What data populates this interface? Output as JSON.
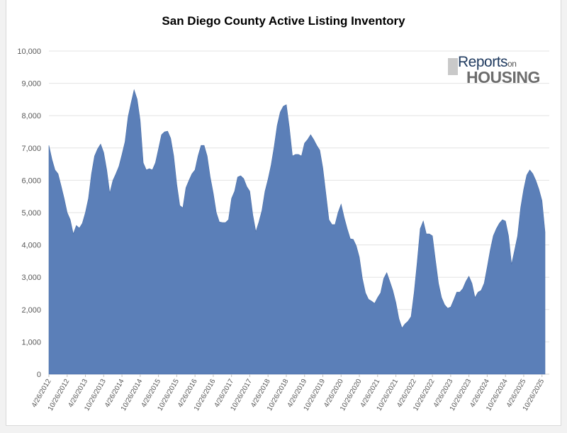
{
  "chart_data": {
    "type": "area",
    "title": "San Diego County Active Listing Inventory",
    "xlabel": "",
    "ylabel": "",
    "ylim": [
      0,
      10000
    ],
    "yticks": [
      "0",
      "1,000",
      "2,000",
      "3,000",
      "4,000",
      "5,000",
      "6,000",
      "7,000",
      "8,000",
      "9,000",
      "10,000"
    ],
    "grid": true,
    "series_color": "#5b7fb8",
    "x_start": "4/2012",
    "x_step": "monthly",
    "xtick_labels": [
      "4/26/2012",
      "10/26/2012",
      "4/26/2013",
      "10/26/2013",
      "4/26/2014",
      "10/26/2014",
      "4/26/2015",
      "10/26/2015",
      "4/26/2016",
      "10/26/2016",
      "4/26/2017",
      "10/26/2017",
      "4/26/2018",
      "10/26/2018",
      "4/26/2019",
      "10/26/2019",
      "4/26/2020",
      "10/26/2020",
      "4/26/2021",
      "10/26/2021",
      "4/26/2022",
      "10/26/2022",
      "4/26/2023",
      "10/26/2023",
      "4/26/2024",
      "10/26/2024",
      "4/26/2025",
      "10/26/2025"
    ],
    "values": [
      7080,
      6650,
      6320,
      6200,
      5830,
      5440,
      5000,
      4780,
      4340,
      4600,
      4520,
      4670,
      5000,
      5440,
      6200,
      6750,
      6970,
      7120,
      6860,
      6320,
      5600,
      5990,
      6200,
      6430,
      6800,
      7190,
      7960,
      8400,
      8800,
      8510,
      7850,
      6540,
      6320,
      6360,
      6320,
      6540,
      6970,
      7410,
      7500,
      7520,
      7300,
      6750,
      5880,
      5220,
      5150,
      5770,
      5990,
      6200,
      6320,
      6750,
      7080,
      7080,
      6750,
      6100,
      5600,
      5000,
      4710,
      4690,
      4690,
      4780,
      5440,
      5660,
      6100,
      6140,
      6050,
      5810,
      5660,
      4930,
      4410,
      4710,
      5070,
      5660,
      6030,
      6470,
      7040,
      7700,
      8110,
      8290,
      8340,
      7630,
      6750,
      6800,
      6800,
      6750,
      7150,
      7260,
      7410,
      7260,
      7080,
      6930,
      6380,
      5590,
      4780,
      4630,
      4630,
      5000,
      5260,
      4850,
      4500,
      4190,
      4170,
      3970,
      3620,
      2960,
      2520,
      2320,
      2260,
      2190,
      2370,
      2520,
      2960,
      3140,
      2870,
      2590,
      2210,
      1710,
      1430,
      1560,
      1640,
      1780,
      2520,
      3460,
      4500,
      4740,
      4340,
      4340,
      4280,
      3530,
      2810,
      2370,
      2150,
      2040,
      2080,
      2300,
      2540,
      2540,
      2650,
      2870,
      3030,
      2810,
      2370,
      2540,
      2590,
      2810,
      3310,
      3840,
      4280,
      4500,
      4670,
      4780,
      4740,
      4280,
      3400,
      3840,
      4280,
      5150,
      5720,
      6160,
      6320,
      6200,
      5990,
      5720,
      5370,
      4400
    ]
  },
  "logo": {
    "line1": "Reports",
    "line1_small": "on",
    "line2": "HOUSING"
  }
}
